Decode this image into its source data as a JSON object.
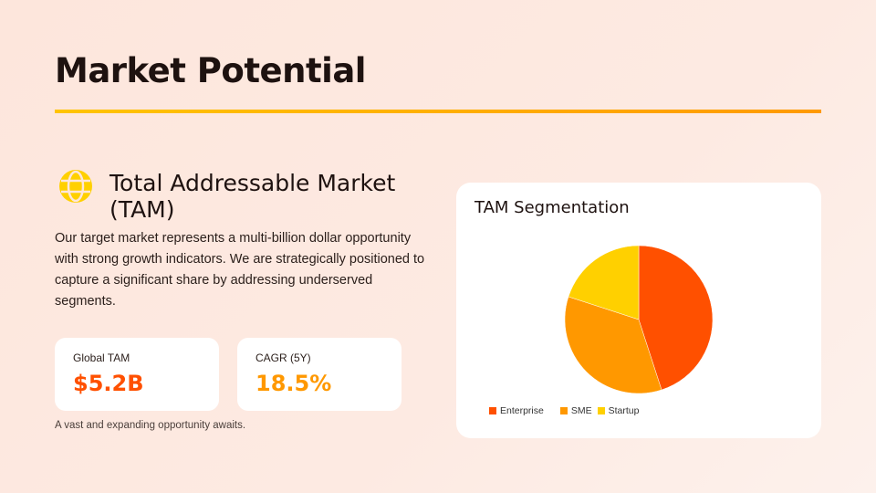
{
  "slide": {
    "title": "Market Potential"
  },
  "section": {
    "icon": "globe-icon",
    "heading": "Total Addressable Market (TAM)",
    "body": "Our target market represents a multi-billion dollar opportunity with strong growth indicators. We are strategically positioned to capture a significant share by addressing underserved segments."
  },
  "stats": [
    {
      "label": "Global TAM",
      "value": "$5.2B",
      "color": "#ff5000"
    },
    {
      "label": "CAGR (5Y)",
      "value": "18.5%",
      "color": "#ff9800"
    }
  ],
  "note": "A vast and expanding opportunity awaits.",
  "chart_data": {
    "type": "pie",
    "title": "TAM Segmentation",
    "categories": [
      "Enterprise",
      "SME",
      "Startup"
    ],
    "values": [
      45,
      35,
      20
    ],
    "colors": [
      "#ff5000",
      "#ff9800",
      "#ffd000"
    ],
    "legend": "bottom"
  }
}
